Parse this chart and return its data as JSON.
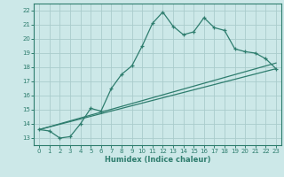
{
  "title": "",
  "xlabel": "Humidex (Indice chaleur)",
  "background_color": "#cce8e8",
  "grid_color": "#aacccc",
  "line_color": "#2e7d6e",
  "xlim": [
    -0.5,
    23.5
  ],
  "ylim": [
    12.5,
    22.5
  ],
  "xticks": [
    0,
    1,
    2,
    3,
    4,
    5,
    6,
    7,
    8,
    9,
    10,
    11,
    12,
    13,
    14,
    15,
    16,
    17,
    18,
    19,
    20,
    21,
    22,
    23
  ],
  "yticks": [
    13,
    14,
    15,
    16,
    17,
    18,
    19,
    20,
    21,
    22
  ],
  "curve1_x": [
    0,
    1,
    2,
    3,
    4,
    5,
    6,
    7,
    8,
    9,
    10,
    11,
    12,
    13,
    14,
    15,
    16,
    17,
    18,
    19,
    20,
    21,
    22,
    23
  ],
  "curve1_y": [
    13.6,
    13.5,
    13.0,
    13.1,
    14.0,
    15.1,
    14.9,
    16.5,
    17.5,
    18.1,
    19.5,
    21.1,
    21.9,
    20.9,
    20.3,
    20.5,
    21.5,
    20.8,
    20.6,
    19.3,
    19.1,
    19.0,
    18.6,
    17.9
  ],
  "curve2_x": [
    0,
    23
  ],
  "curve2_y": [
    13.6,
    17.9
  ],
  "curve3_x": [
    0,
    23
  ],
  "curve3_y": [
    13.6,
    18.3
  ]
}
